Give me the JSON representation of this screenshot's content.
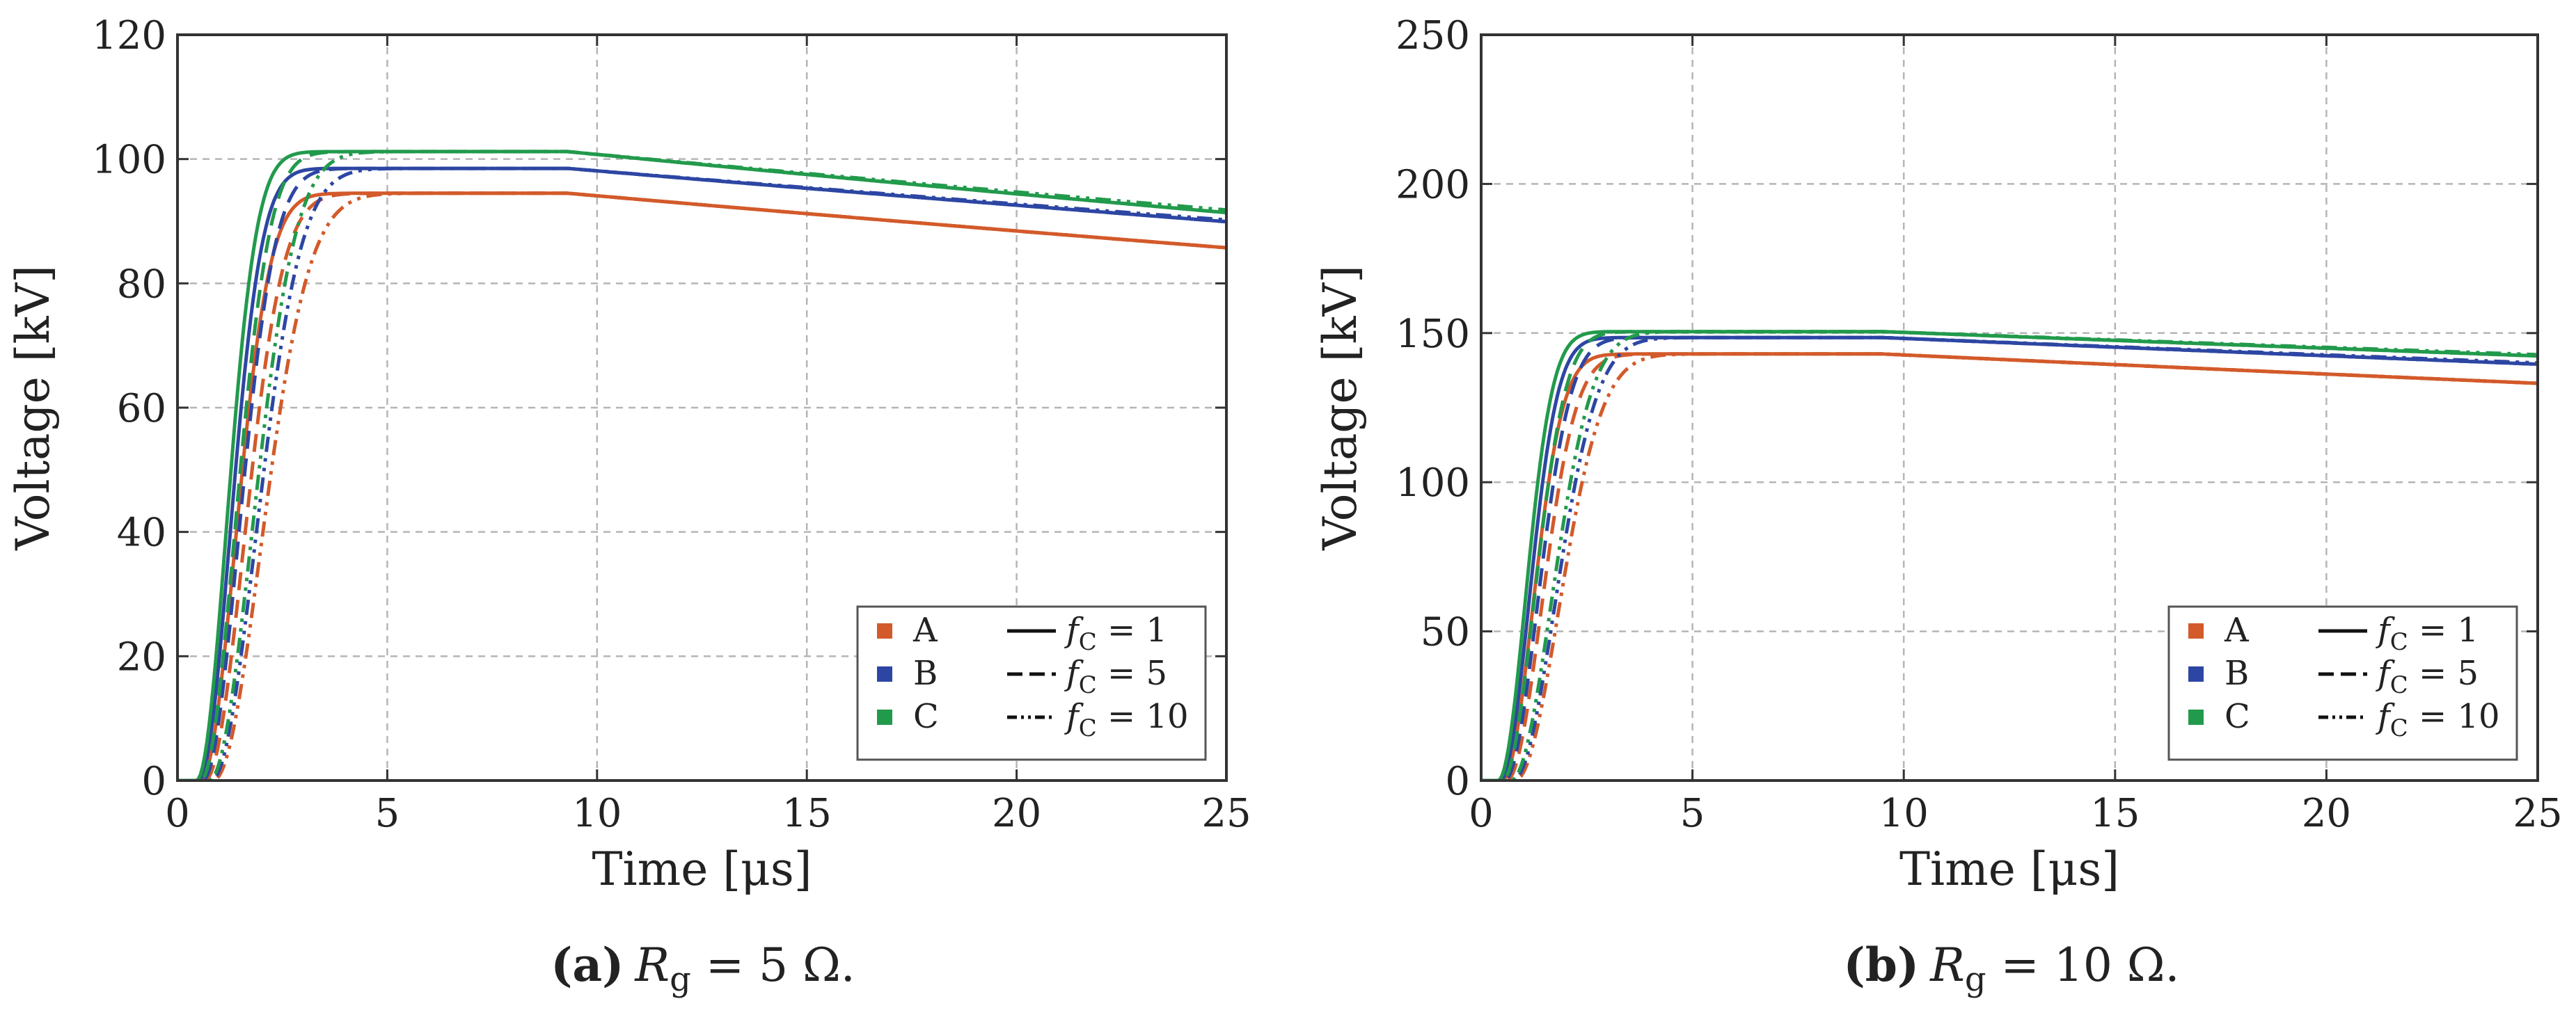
{
  "colors": {
    "A": "#d35a2a",
    "B": "#2d46a3",
    "C": "#229a4c"
  },
  "legend": {
    "series": [
      "A",
      "B",
      "C"
    ],
    "styles": [
      {
        "f_label": "f",
        "sub": "C",
        "rest": " = 1"
      },
      {
        "f_label": "f",
        "sub": "C",
        "rest": " = 5"
      },
      {
        "f_label": "f",
        "sub": "C",
        "rest": " = 10"
      }
    ]
  },
  "chart_data": [
    {
      "type": "line",
      "panel": "a",
      "caption_letter": "(a)",
      "caption_var": "R",
      "caption_sub": "g",
      "caption_rest": " = 5 Ω.",
      "xlabel": "Time [μs]",
      "ylabel": "Voltage [kV]",
      "xlim": [
        0,
        25
      ],
      "ylim": [
        0,
        120
      ],
      "xticks": [
        0,
        5,
        10,
        15,
        20,
        25
      ],
      "yticks": [
        0,
        20,
        40,
        60,
        80,
        100,
        120
      ],
      "grid": true,
      "legend_position": "lower-right",
      "series": [
        {
          "name": "A",
          "fc": 1,
          "t0": 0.55,
          "tau": 1.15,
          "peak": 94.5,
          "tpk": 9.3,
          "decay": 0.0062
        },
        {
          "name": "A",
          "fc": 5,
          "t0": 0.65,
          "tau": 1.3,
          "peak": 94.5,
          "tpk": 9.3,
          "decay": 0.0062
        },
        {
          "name": "A",
          "fc": 10,
          "t0": 0.85,
          "tau": 1.6,
          "peak": 94.5,
          "tpk": 9.3,
          "decay": 0.0062
        },
        {
          "name": "B",
          "fc": 1,
          "t0": 0.5,
          "tau": 1.05,
          "peak": 98.5,
          "tpk": 9.3,
          "decay": 0.0058
        },
        {
          "name": "B",
          "fc": 5,
          "t0": 0.6,
          "tau": 1.2,
          "peak": 98.5,
          "tpk": 9.3,
          "decay": 0.0058
        },
        {
          "name": "B",
          "fc": 10,
          "t0": 0.8,
          "tau": 1.5,
          "peak": 98.5,
          "tpk": 9.3,
          "decay": 0.0056
        },
        {
          "name": "C",
          "fc": 1,
          "t0": 0.45,
          "tau": 1.0,
          "peak": 101.2,
          "tpk": 9.3,
          "decay": 0.0065
        },
        {
          "name": "C",
          "fc": 5,
          "t0": 0.55,
          "tau": 1.15,
          "peak": 101.2,
          "tpk": 9.3,
          "decay": 0.0065
        },
        {
          "name": "C",
          "fc": 10,
          "t0": 0.75,
          "tau": 1.45,
          "peak": 101.2,
          "tpk": 9.3,
          "decay": 0.0062
        }
      ]
    },
    {
      "type": "line",
      "panel": "b",
      "caption_letter": "(b)",
      "caption_var": "R",
      "caption_sub": "g",
      "caption_rest": " = 10 Ω.",
      "xlabel": "Time [μs]",
      "ylabel": "Voltage [kV]",
      "xlim": [
        0,
        25
      ],
      "ylim": [
        0,
        250
      ],
      "xticks": [
        0,
        5,
        10,
        15,
        20,
        25
      ],
      "yticks": [
        0,
        50,
        100,
        150,
        200,
        250
      ],
      "grid": true,
      "legend_position": "lower-right",
      "series": [
        {
          "name": "A",
          "fc": 1,
          "t0": 0.5,
          "tau": 1.0,
          "peak": 143,
          "tpk": 9.5,
          "decay": 0.0046
        },
        {
          "name": "A",
          "fc": 5,
          "t0": 0.6,
          "tau": 1.15,
          "peak": 143,
          "tpk": 9.5,
          "decay": 0.0046
        },
        {
          "name": "A",
          "fc": 10,
          "t0": 0.8,
          "tau": 1.45,
          "peak": 143,
          "tpk": 9.5,
          "decay": 0.0046
        },
        {
          "name": "B",
          "fc": 1,
          "t0": 0.45,
          "tau": 0.95,
          "peak": 148.5,
          "tpk": 9.5,
          "decay": 0.004
        },
        {
          "name": "B",
          "fc": 5,
          "t0": 0.55,
          "tau": 1.1,
          "peak": 148.5,
          "tpk": 9.5,
          "decay": 0.004
        },
        {
          "name": "B",
          "fc": 10,
          "t0": 0.75,
          "tau": 1.4,
          "peak": 148.5,
          "tpk": 9.5,
          "decay": 0.0038
        },
        {
          "name": "C",
          "fc": 1,
          "t0": 0.4,
          "tau": 0.9,
          "peak": 150.5,
          "tpk": 9.5,
          "decay": 0.0036
        },
        {
          "name": "C",
          "fc": 5,
          "t0": 0.5,
          "tau": 1.05,
          "peak": 150.5,
          "tpk": 9.5,
          "decay": 0.0036
        },
        {
          "name": "C",
          "fc": 10,
          "t0": 0.7,
          "tau": 1.35,
          "peak": 150.5,
          "tpk": 9.5,
          "decay": 0.0034
        }
      ]
    }
  ]
}
